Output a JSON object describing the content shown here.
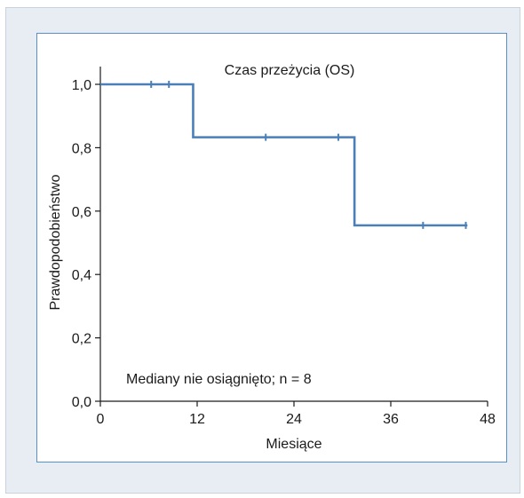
{
  "chart_data": {
    "type": "line",
    "subtype": "kaplan-meier",
    "title": "Czas przeżycia (OS)",
    "xlabel": "Miesiące",
    "ylabel": "Prawdopodobieństwo",
    "xlim": [
      0,
      48
    ],
    "ylim": [
      0.0,
      1.0
    ],
    "x_ticks": [
      0,
      12,
      24,
      36,
      48
    ],
    "x_tick_labels": [
      "0",
      "12",
      "24",
      "36",
      "48"
    ],
    "y_ticks": [
      0.0,
      0.2,
      0.4,
      0.6,
      0.8,
      1.0
    ],
    "y_tick_labels": [
      "0,0",
      "0,2",
      "0,4",
      "0,6",
      "0,8",
      "1,0"
    ],
    "grid": false,
    "series": [
      {
        "steps": [
          {
            "x": 0,
            "y": 1.0
          },
          {
            "x": 11.5,
            "y": 0.833
          },
          {
            "x": 31.5,
            "y": 0.555
          },
          {
            "x": 45.5,
            "y": 0.555
          }
        ],
        "censor_marks": [
          {
            "x": 6.3,
            "y": 1.0
          },
          {
            "x": 8.5,
            "y": 1.0
          },
          {
            "x": 20.5,
            "y": 0.833
          },
          {
            "x": 29.5,
            "y": 0.833
          },
          {
            "x": 40.0,
            "y": 0.555
          },
          {
            "x": 45.3,
            "y": 0.555
          }
        ],
        "color": "#4a7fb8"
      }
    ],
    "annotation": "Mediany nie osiągnięto; n = 8"
  }
}
